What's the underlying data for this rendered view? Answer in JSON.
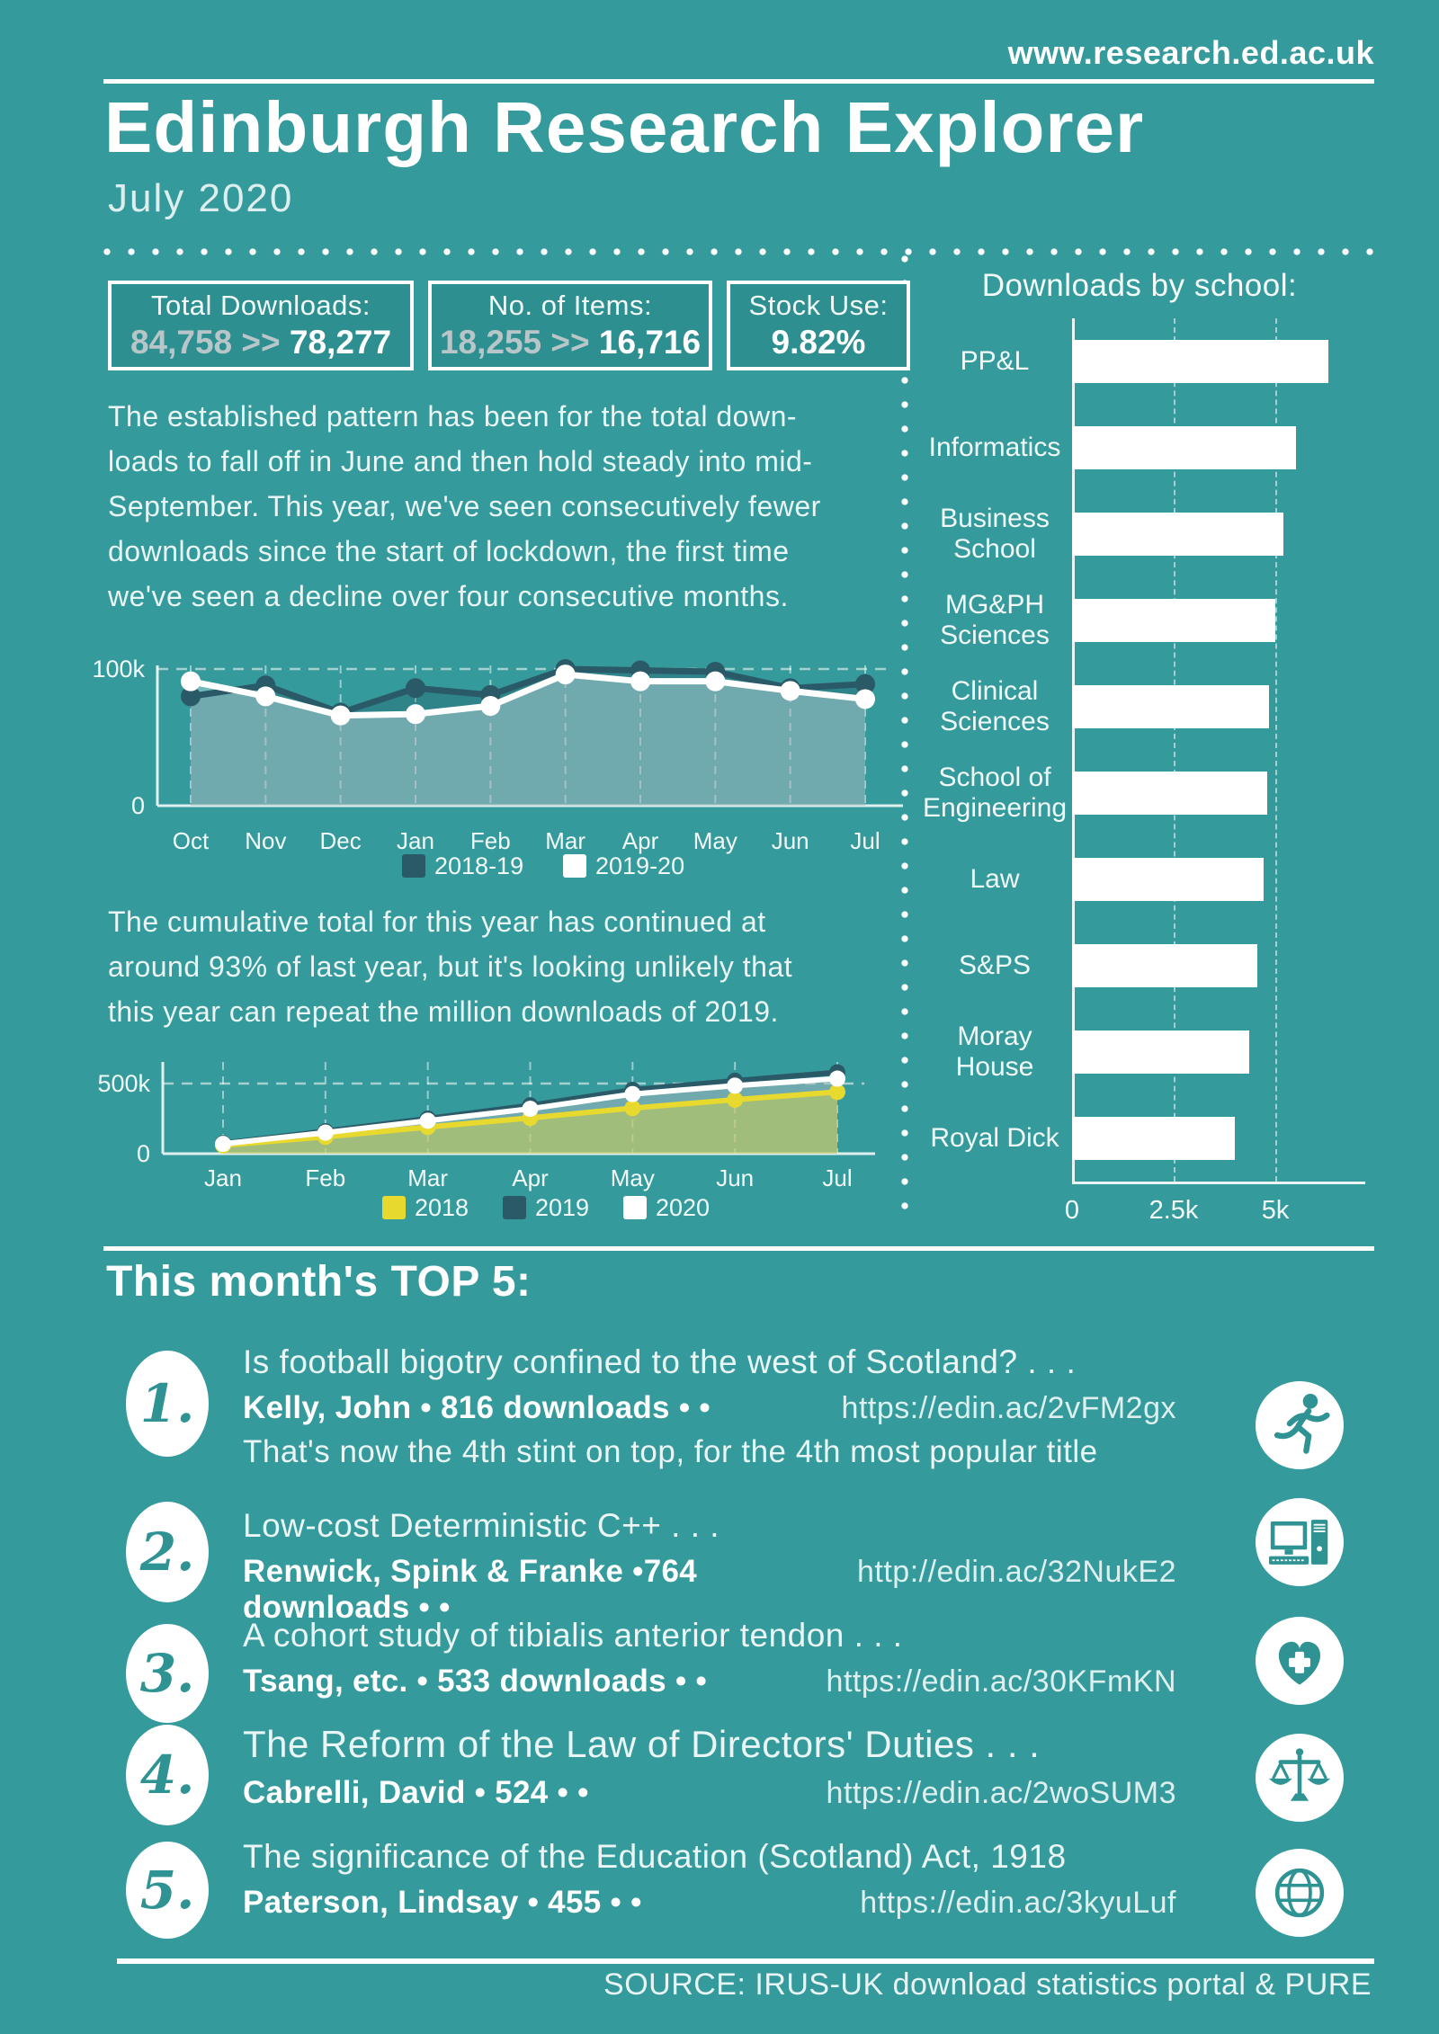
{
  "header": {
    "site_url": "www.research.ed.ac.uk",
    "title": "Edinburgh Research Explorer",
    "subtitle": "July 2020"
  },
  "stats": [
    {
      "label": "Total Downloads:",
      "old": "84,758",
      "sep": ">>",
      "new": "78,277"
    },
    {
      "label": "No. of Items:",
      "old": "18,255",
      "sep": ">>",
      "new": "16,716"
    },
    {
      "label": "Stock Use:",
      "old": "",
      "sep": "",
      "new": "9.82%"
    }
  ],
  "paragraph1": "The established pattern has been for the total down-\nloads to fall off in June and then hold steady into mid-\nSeptember. This year, we've seen consecutively fewer\ndownloads since the start of lockdown, the first time\nwe've seen a decline over four consecutive months.",
  "paragraph2": "The cumulative total for this year  has continued at\naround 93% of last year, but it's looking unlikely that\nthis year can repeat the  million downloads of 2019.",
  "colors": {
    "background": "#349a9b",
    "dark_series": "#2a5a67",
    "yellow_series": "#e8d92f",
    "white_series": "#ffffff",
    "muted_gray": "#b8c6c9"
  },
  "chart_data": [
    {
      "type": "line",
      "name": "monthly-downloads-chart",
      "categories": [
        "Oct",
        "Nov",
        "Dec",
        "Jan",
        "Feb",
        "Mar",
        "Apr",
        "May",
        "Jun",
        "Jul"
      ],
      "series": [
        {
          "name": "2018-19",
          "color": "dark",
          "values": [
            80000,
            88000,
            68000,
            86000,
            81000,
            100000,
            99000,
            98000,
            86000,
            89000
          ]
        },
        {
          "name": "2019-20",
          "color": "white",
          "values": [
            91000,
            80000,
            66000,
            67000,
            73000,
            96000,
            91000,
            91000,
            84000,
            78000
          ]
        }
      ],
      "ylim": [
        0,
        105000
      ],
      "yticks": [
        {
          "value": 0,
          "label": "0"
        },
        {
          "value": 100000,
          "label": "100k"
        }
      ],
      "grid": true,
      "legend_position": "bottom"
    },
    {
      "type": "line",
      "name": "cumulative-downloads-chart",
      "categories": [
        "Jan",
        "Feb",
        "Mar",
        "Apr",
        "May",
        "Jun",
        "Jul"
      ],
      "series": [
        {
          "name": "2018",
          "color": "yellow",
          "values": [
            60000,
            120000,
            190000,
            255000,
            325000,
            385000,
            440000
          ]
        },
        {
          "name": "2019",
          "color": "dark",
          "values": [
            75000,
            160000,
            250000,
            345000,
            455000,
            520000,
            580000
          ]
        },
        {
          "name": "2020",
          "color": "white",
          "values": [
            70000,
            150000,
            235000,
            320000,
            425000,
            485000,
            535000
          ]
        }
      ],
      "ylim": [
        0,
        620000
      ],
      "yticks": [
        {
          "value": 0,
          "label": "0"
        },
        {
          "value": 500000,
          "label": "500k"
        }
      ],
      "grid": true,
      "legend_position": "bottom"
    },
    {
      "type": "bar",
      "name": "downloads-by-school-chart",
      "title": "Downloads by school:",
      "orientation": "horizontal",
      "categories": [
        "PP&L",
        "Informatics",
        "Business School",
        "MG&PH Sciences",
        "Clinical Sciences",
        "School of Engineering",
        "Law",
        "S&PS",
        "Moray House",
        "Royal Dick"
      ],
      "values": [
        6300,
        5500,
        5200,
        5000,
        4850,
        4800,
        4700,
        4550,
        4350,
        4000
      ],
      "xlim": [
        0,
        6900
      ],
      "xticks": [
        {
          "value": 0,
          "label": "0"
        },
        {
          "value": 2500,
          "label": "2.5k"
        },
        {
          "value": 5000,
          "label": "5k"
        }
      ],
      "grid": true
    }
  ],
  "top5": {
    "heading": "This month's TOP 5:",
    "items": [
      {
        "rank": "1.",
        "title": "Is football bigotry confined to the west of Scotland? . . .",
        "byline": "Kelly, John • 816 downloads • •",
        "link": "https://edin.ac/2vFM2gx",
        "note": "That's now the 4th stint on top, for the 4th most popular title",
        "icon": "runner-icon"
      },
      {
        "rank": "2.",
        "title": "Low-cost Deterministic C++ . . .",
        "byline": "Renwick, Spink & Franke •764 downloads • •",
        "link": "http://edin.ac/32NukE2",
        "icon": "computer-icon"
      },
      {
        "rank": "3.",
        "title": "A cohort study of tibialis anterior tendon . . .",
        "byline": "Tsang, etc. • 533 downloads • •",
        "link": "https://edin.ac/30KFmKN",
        "icon": "heart-medical-icon"
      },
      {
        "rank": "4.",
        "title": "The Reform of the Law of Directors' Duties . . .",
        "byline": "Cabrelli, David • 524 • •",
        "link": "https://edin.ac/2woSUM3",
        "icon": "scales-icon"
      },
      {
        "rank": "5.",
        "title": "The significance of the Education (Scotland) Act, 1918",
        "byline": "Paterson, Lindsay • 455 • •",
        "link": "https://edin.ac/3kyuLuf",
        "icon": "globe-icon"
      }
    ]
  },
  "footer": {
    "source": "SOURCE: IRUS-UK download statistics portal & PURE"
  }
}
